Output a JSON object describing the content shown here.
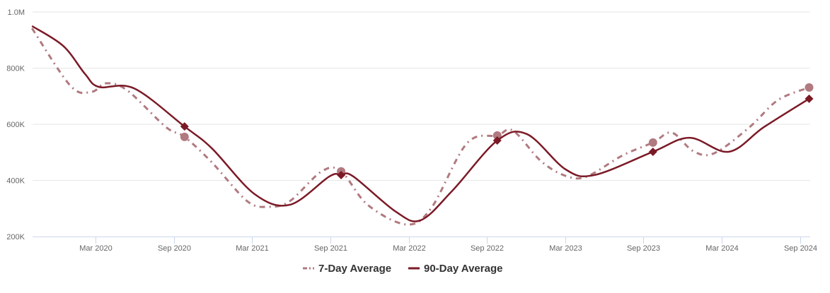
{
  "chart_data": {
    "type": "line",
    "title": "",
    "xlabel": "",
    "ylabel": "",
    "ylim": [
      200000,
      1000000
    ],
    "y_ticks": [
      "200K",
      "400K",
      "600K",
      "800K",
      "1.0M"
    ],
    "y_tick_values": [
      200000,
      400000,
      600000,
      800000,
      1000000
    ],
    "x_ticks": [
      "Mar 2020",
      "Sep 2020",
      "Mar 2021",
      "Sep 2021",
      "Mar 2022",
      "Sep 2022",
      "Mar 2023",
      "Sep 2023",
      "Mar 2024",
      "Sep 2024"
    ],
    "x_tick_dates": [
      "2020-03-01",
      "2020-09-01",
      "2021-03-01",
      "2021-09-01",
      "2022-03-01",
      "2022-09-01",
      "2023-03-01",
      "2023-09-01",
      "2024-03-01",
      "2024-09-01"
    ],
    "grid": true,
    "legend_position": "bottom",
    "series": [
      {
        "name": "7-Day Average",
        "color": "#b07a80",
        "style": "dash-dot",
        "marker": "circle",
        "points": [
          [
            "2019-10-05",
            942000
          ],
          [
            "2020-01-04",
            736000
          ],
          [
            "2020-02-23",
            716000
          ],
          [
            "2020-03-25",
            746000
          ],
          [
            "2020-05-14",
            721000
          ],
          [
            "2020-08-13",
            590000
          ],
          [
            "2020-09-26",
            555000
          ],
          [
            "2020-11-29",
            464000
          ],
          [
            "2021-02-20",
            326000
          ],
          [
            "2021-04-09",
            306000
          ],
          [
            "2021-05-28",
            326000
          ],
          [
            "2021-08-11",
            432000
          ],
          [
            "2021-09-26",
            432000
          ],
          [
            "2021-11-27",
            313000
          ],
          [
            "2022-02-26",
            243000
          ],
          [
            "2022-04-23",
            301000
          ],
          [
            "2022-07-15",
            532000
          ],
          [
            "2022-09-25",
            560000
          ],
          [
            "2022-11-01",
            577000
          ],
          [
            "2023-01-05",
            469000
          ],
          [
            "2023-03-02",
            416000
          ],
          [
            "2023-04-21",
            414000
          ],
          [
            "2023-07-13",
            489000
          ],
          [
            "2023-09-23",
            535000
          ],
          [
            "2023-11-06",
            570000
          ],
          [
            "2023-12-26",
            504000
          ],
          [
            "2024-02-14",
            497000
          ],
          [
            "2024-05-05",
            590000
          ],
          [
            "2024-07-10",
            686000
          ],
          [
            "2024-09-22",
            731000
          ]
        ],
        "marked_dates": [
          "2020-09-26",
          "2021-09-26",
          "2022-09-25",
          "2023-09-23",
          "2024-09-22"
        ]
      },
      {
        "name": "90-Day Average",
        "color": "#7b1a26",
        "style": "solid",
        "marker": "diamond",
        "points": [
          [
            "2019-10-05",
            950000
          ],
          [
            "2019-12-17",
            879000
          ],
          [
            "2020-02-07",
            779000
          ],
          [
            "2020-03-09",
            733000
          ],
          [
            "2020-05-30",
            728000
          ],
          [
            "2020-09-26",
            592000
          ],
          [
            "2020-11-29",
            514000
          ],
          [
            "2021-03-07",
            351000
          ],
          [
            "2021-05-28",
            313000
          ],
          [
            "2021-08-29",
            414000
          ],
          [
            "2021-09-26",
            419000
          ],
          [
            "2021-10-24",
            414000
          ],
          [
            "2022-02-02",
            288000
          ],
          [
            "2022-03-29",
            258000
          ],
          [
            "2022-06-12",
            364000
          ],
          [
            "2022-09-25",
            542000
          ],
          [
            "2022-12-03",
            565000
          ],
          [
            "2023-03-02",
            439000
          ],
          [
            "2023-05-08",
            419000
          ],
          [
            "2023-09-23",
            502000
          ],
          [
            "2023-12-17",
            552000
          ],
          [
            "2024-03-17",
            502000
          ],
          [
            "2024-06-08",
            590000
          ],
          [
            "2024-09-22",
            691000
          ]
        ],
        "marked_dates": [
          "2020-09-26",
          "2021-09-26",
          "2022-09-25",
          "2023-09-23",
          "2024-09-22"
        ]
      }
    ]
  }
}
